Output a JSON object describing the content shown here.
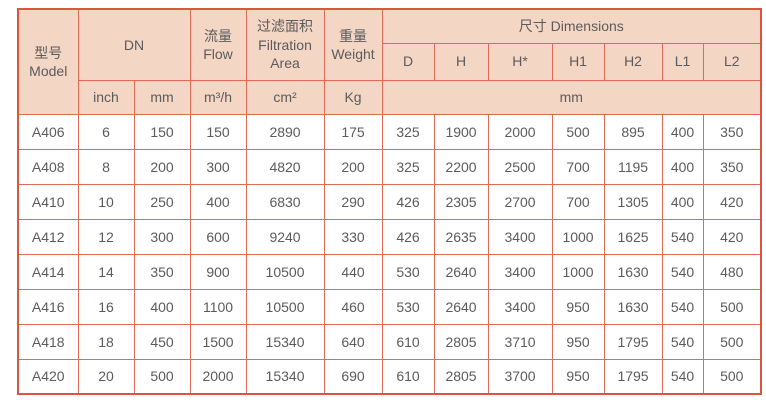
{
  "header": {
    "model": "型号\nModel",
    "dn": "DN",
    "flow": "流量\nFlow",
    "filtration": "过滤面积\nFiltration\nArea",
    "weight": "重量\nWeight",
    "dimensions": "尺寸 Dimensions",
    "dim_cols": [
      "D",
      "H",
      "H*",
      "H1",
      "H2",
      "L1",
      "L2"
    ]
  },
  "units": {
    "inch": "inch",
    "mm": "mm",
    "flow": "m³/h",
    "area": "cm²",
    "weight": "Kg",
    "dimensions": "mm"
  },
  "colors": {
    "header_bg": "#f4d6c5",
    "border": "#e06b55",
    "outer_border": "#d8573f",
    "text": "#5b5b5b"
  },
  "rows": [
    {
      "model": "A406",
      "values": [
        "6",
        "150",
        "150",
        "2890",
        "175",
        "325",
        "1900",
        "2000",
        "500",
        "895",
        "400",
        "350"
      ]
    },
    {
      "model": "A408",
      "values": [
        "8",
        "200",
        "300",
        "4820",
        "200",
        "325",
        "2200",
        "2500",
        "700",
        "1195",
        "400",
        "350"
      ]
    },
    {
      "model": "A410",
      "values": [
        "10",
        "250",
        "400",
        "6830",
        "290",
        "426",
        "2305",
        "2700",
        "700",
        "1305",
        "400",
        "420"
      ]
    },
    {
      "model": "A412",
      "values": [
        "12",
        "300",
        "600",
        "9240",
        "330",
        "426",
        "2635",
        "3400",
        "1000",
        "1625",
        "540",
        "420"
      ]
    },
    {
      "model": "A414",
      "values": [
        "14",
        "350",
        "900",
        "10500",
        "440",
        "530",
        "2640",
        "3400",
        "1000",
        "1630",
        "540",
        "480"
      ]
    },
    {
      "model": "A416",
      "values": [
        "16",
        "400",
        "1100",
        "10500",
        "460",
        "530",
        "2640",
        "3400",
        "950",
        "1630",
        "540",
        "500"
      ]
    },
    {
      "model": "A418",
      "values": [
        "18",
        "450",
        "1500",
        "15340",
        "640",
        "610",
        "2805",
        "3710",
        "950",
        "1795",
        "540",
        "500"
      ]
    },
    {
      "model": "A420",
      "values": [
        "20",
        "500",
        "2000",
        "15340",
        "690",
        "610",
        "2805",
        "3700",
        "950",
        "1795",
        "540",
        "500"
      ]
    }
  ]
}
